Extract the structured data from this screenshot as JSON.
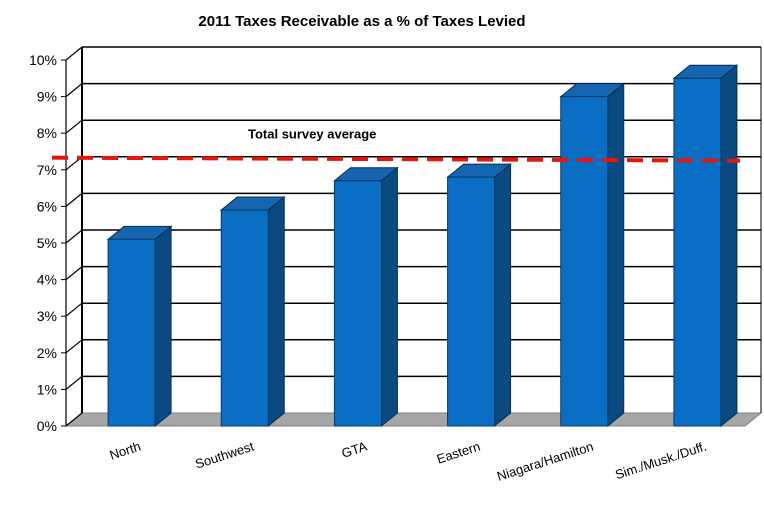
{
  "chart_data": {
    "type": "bar",
    "title": "2011 Taxes Receivable as a % of Taxes Levied",
    "xlabel": "",
    "ylabel": "",
    "categories": [
      "North",
      "Southwest",
      "GTA",
      "Eastern",
      "Niagara/Hamilton",
      "Sim./Musk./Duff."
    ],
    "values": [
      5.1,
      5.9,
      6.7,
      6.8,
      9.0,
      9.5
    ],
    "ylim": [
      0,
      10
    ],
    "yticks": [
      "0%",
      "1%",
      "2%",
      "3%",
      "4%",
      "5%",
      "6%",
      "7%",
      "8%",
      "9%",
      "10%"
    ],
    "reference_line": {
      "label": "Total survey average",
      "value": 7.25,
      "color": "#e3170a",
      "style": "dashed"
    },
    "bar_color": "#0a6ec4",
    "grid": true,
    "legend": "none"
  }
}
